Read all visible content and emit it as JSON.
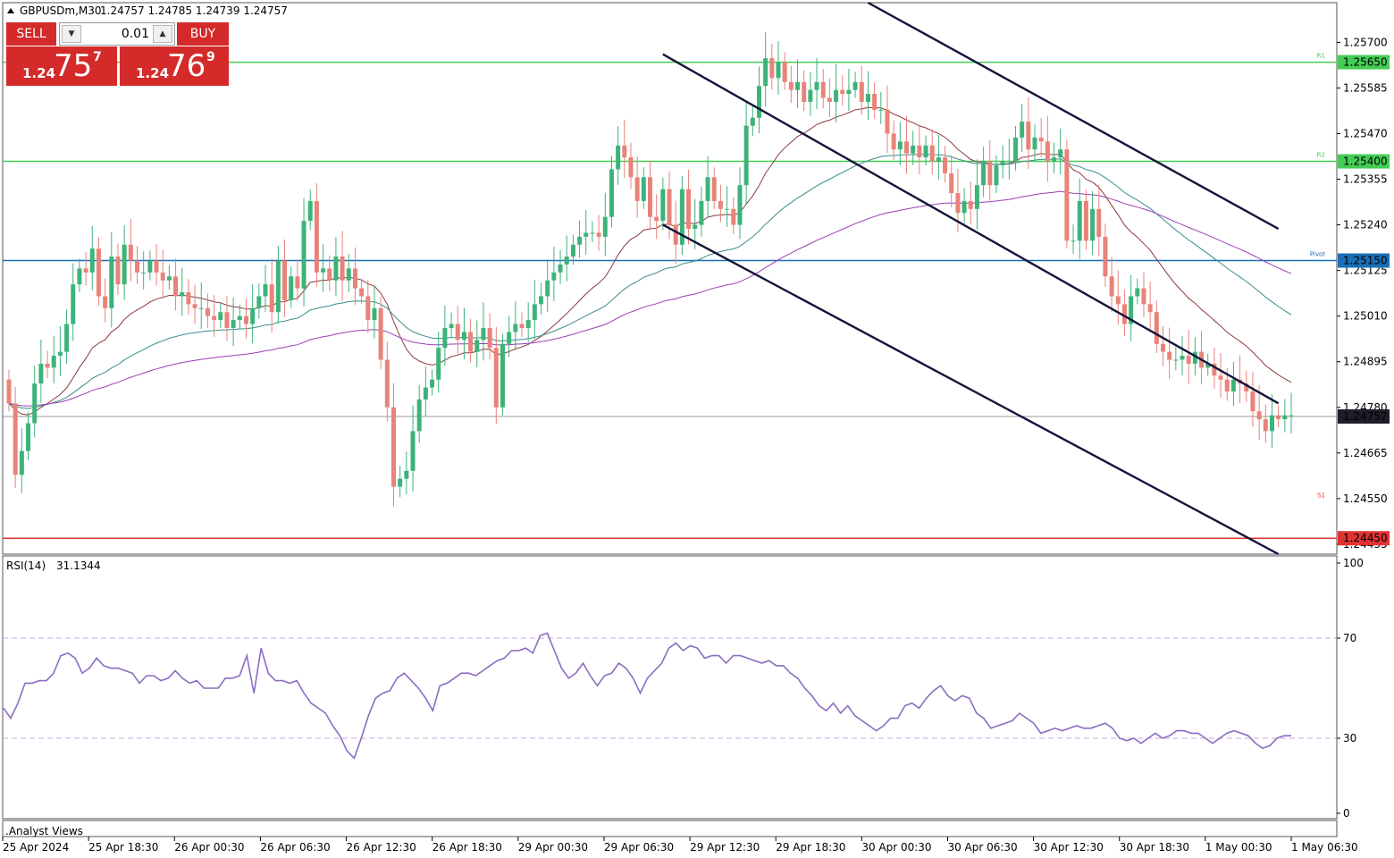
{
  "chart_header": {
    "symbol": "GBPUSDm,M30",
    "ohlc": "1.24757 1.24785 1.24739 1.24757"
  },
  "trade_panel": {
    "sell_label": "SELL",
    "buy_label": "BUY",
    "lot_size": "0.01",
    "sell_price": {
      "small": "1.24",
      "big": "75",
      "sup": "7"
    },
    "buy_price": {
      "small": "1.24",
      "big": "76",
      "sup": "9"
    }
  },
  "colors": {
    "bull": "#3db37a",
    "bear": "#e8837a",
    "ma_fast": "#8b3a3a",
    "ma_mid": "#3b8c8c",
    "ma_slow": "#9b3fb5",
    "rsi_line": "#8a6dc2",
    "r1_line": "#44cc55",
    "pivot_line": "#1a6fb5",
    "s2_line": "#e03333",
    "channel": "#14143a"
  },
  "chart_data": [
    {
      "type": "candlestick",
      "symbol": "GBPUSDm",
      "timeframe": "M30",
      "price_axis": {
        "ylim": [
          1.2441,
          1.258
        ],
        "ticks": [
          "1.25700",
          "1.25585",
          "1.25470",
          "1.25355",
          "1.25240",
          "1.25125",
          "1.25010",
          "1.24895",
          "1.24780",
          "1.24665",
          "1.24550",
          "1.24435"
        ]
      },
      "time_axis": {
        "ticks": [
          "25 Apr 2024",
          "25 Apr 18:30",
          "26 Apr 00:30",
          "26 Apr 06:30",
          "26 Apr 12:30",
          "26 Apr 18:30",
          "29 Apr 00:30",
          "29 Apr 06:30",
          "29 Apr 12:30",
          "29 Apr 18:30",
          "30 Apr 00:30",
          "30 Apr 06:30",
          "30 Apr 12:30",
          "30 Apr 18:30",
          "1 May 00:30",
          "1 May 06:30"
        ]
      },
      "horizontal_levels": [
        {
          "label": "1.25650",
          "tag": "R1",
          "value": 1.2565,
          "kind": "r1"
        },
        {
          "label": "1.25400",
          "tag": "R2",
          "value": 1.254,
          "kind": "r1"
        },
        {
          "label": "1.25150",
          "tag": "Pivot",
          "value": 1.2515,
          "kind": "pivot"
        },
        {
          "label": "1.24450",
          "tag": "",
          "value": 1.2445,
          "kind": "s2"
        }
      ],
      "s1_tag": {
        "tag": "S1",
        "value": 1.2456
      },
      "current_price": {
        "label": "1.24757",
        "value": 1.24757
      },
      "candles_close": [
        1.2479,
        1.2461,
        1.2467,
        1.2474,
        1.2484,
        1.2489,
        1.2488,
        1.2491,
        1.2492,
        1.2499,
        1.2509,
        1.2513,
        1.2512,
        1.2518,
        1.2506,
        1.2503,
        1.2516,
        1.2509,
        1.2519,
        1.2515,
        1.2512,
        1.2512,
        1.2515,
        1.2512,
        1.251,
        1.2511,
        1.2506,
        1.2507,
        1.2504,
        1.2503,
        1.2503,
        1.2501,
        1.25,
        1.2502,
        1.2498,
        1.25,
        1.2501,
        1.2499,
        1.2503,
        1.2506,
        1.2509,
        1.2502,
        1.2515,
        1.2505,
        1.2511,
        1.2508,
        1.2525,
        1.253,
        1.2512,
        1.2513,
        1.251,
        1.2516,
        1.251,
        1.2513,
        1.2508,
        1.2506,
        1.25,
        1.2503,
        1.249,
        1.2478,
        1.2458,
        1.246,
        1.2462,
        1.2472,
        1.248,
        1.2483,
        1.2485,
        1.2493,
        1.2498,
        1.2499,
        1.2495,
        1.2497,
        1.2492,
        1.2495,
        1.2498,
        1.2493,
        1.2478,
        1.2494,
        1.2497,
        1.2499,
        1.2498,
        1.25,
        1.2504,
        1.2506,
        1.251,
        1.2512,
        1.2514,
        1.2516,
        1.2519,
        1.2521,
        1.2522,
        1.2522,
        1.2521,
        1.2526,
        1.2538,
        1.2544,
        1.2541,
        1.2536,
        1.253,
        1.2536,
        1.2526,
        1.2525,
        1.2533,
        1.2524,
        1.2519,
        1.2533,
        1.2523,
        1.2524,
        1.253,
        1.2536,
        1.253,
        1.2528,
        1.2528,
        1.2524,
        1.2534,
        1.2549,
        1.2551,
        1.2559,
        1.2566,
        1.2561,
        1.2565,
        1.256,
        1.2558,
        1.256,
        1.2555,
        1.2558,
        1.256,
        1.2556,
        1.2555,
        1.2558,
        1.2557,
        1.2558,
        1.256,
        1.2555,
        1.2557,
        1.2553,
        1.2553,
        1.2547,
        1.2543,
        1.2545,
        1.2542,
        1.2544,
        1.2541,
        1.2544,
        1.254,
        1.2541,
        1.2537,
        1.2532,
        1.2527,
        1.253,
        1.2528,
        1.2534,
        1.254,
        1.2534,
        1.2539,
        1.254,
        1.254,
        1.2546,
        1.255,
        1.2543,
        1.2546,
        1.2545,
        1.254,
        1.2541,
        1.2543,
        1.252,
        1.252,
        1.253,
        1.252,
        1.2528,
        1.2521,
        1.2511,
        1.2506,
        1.2504,
        1.2499,
        1.2506,
        1.2508,
        1.2504,
        1.2502,
        1.2494,
        1.2492,
        1.249,
        1.249,
        1.2491,
        1.2489,
        1.2492,
        1.2488,
        1.2489,
        1.2486,
        1.2485,
        1.2482,
        1.2485,
        1.2484,
        1.2482,
        1.2477,
        1.2475,
        1.2472,
        1.2476,
        1.2475,
        1.2476,
        1.2476
      ]
    },
    {
      "type": "line",
      "name": "RSI(14)",
      "value_label": "31.1344",
      "ylim": [
        0,
        100
      ],
      "ticks": [
        "100",
        "70",
        "30",
        "0"
      ],
      "levels": [
        70,
        30
      ],
      "values": [
        42,
        38,
        44,
        52,
        52,
        53,
        53,
        56,
        63,
        64,
        62,
        56,
        58,
        62,
        59,
        58,
        58,
        57,
        56,
        52,
        55,
        55,
        53,
        54,
        57,
        54,
        52,
        53,
        50,
        50,
        50,
        54,
        54,
        55,
        63,
        48,
        66,
        56,
        53,
        53,
        52,
        53,
        48,
        44,
        42,
        40,
        35,
        31,
        25,
        22,
        30,
        39,
        46,
        48,
        49,
        54,
        56,
        53,
        50,
        46,
        41,
        51,
        52,
        54,
        56,
        56,
        55,
        57,
        59,
        61,
        62,
        65,
        65,
        66,
        64,
        71,
        72,
        65,
        58,
        54,
        56,
        60,
        55,
        51,
        55,
        56,
        60,
        58,
        54,
        48,
        54,
        57,
        60,
        66,
        68,
        65,
        67,
        66,
        62,
        63,
        63,
        60,
        63,
        63,
        62,
        61,
        60,
        61,
        59,
        59,
        56,
        54,
        50,
        47,
        43,
        41,
        44,
        40,
        43,
        39,
        37,
        35,
        33,
        35,
        38,
        38,
        43,
        44,
        42,
        46,
        49,
        51,
        47,
        45,
        47,
        46,
        40,
        38,
        34,
        35,
        36,
        37,
        40,
        38,
        36,
        32,
        33,
        34,
        33,
        34,
        35,
        34,
        34,
        35,
        36,
        34,
        30,
        29,
        30,
        28,
        30,
        32,
        30,
        31,
        33,
        33,
        32,
        32,
        30,
        28,
        30,
        32,
        33,
        32,
        31,
        28,
        26,
        27,
        30,
        31,
        31
      ]
    }
  ],
  "indicator_window_label": ".Analyst Views"
}
